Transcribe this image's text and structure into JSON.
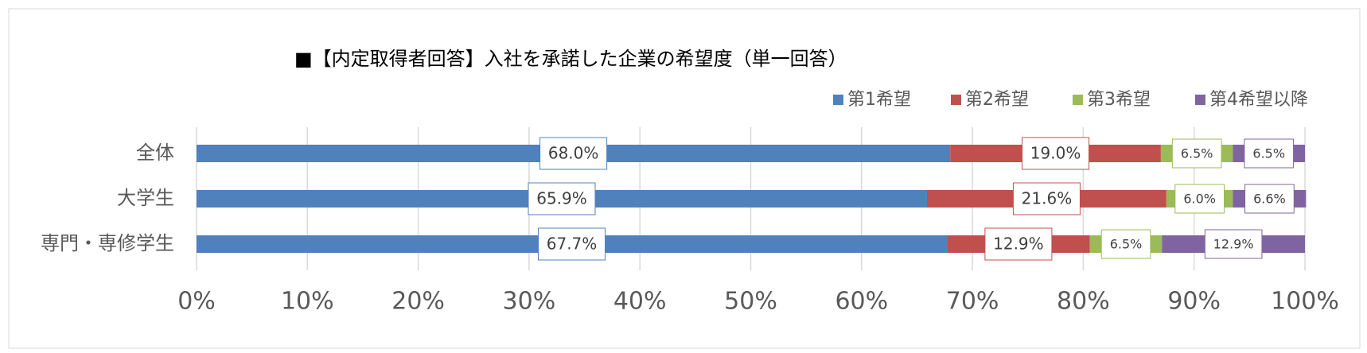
{
  "chart_data": {
    "type": "stacked-bar-horizontal",
    "title": "■【内定取得者回答】入社を承諾した企業の希望度（単一回答）",
    "categories": [
      "全体",
      "大学生",
      "専門・専修学生"
    ],
    "series": [
      {
        "name": "第1希望",
        "color": "#4f81bd",
        "values": [
          68.0,
          65.9,
          67.7
        ],
        "value_labels": [
          "68.0%",
          "65.9%",
          "67.7%"
        ]
      },
      {
        "name": "第2希望",
        "color": "#c0504d",
        "values": [
          19.0,
          21.6,
          12.9
        ],
        "value_labels": [
          "19.0%",
          "21.6%",
          "12.9%"
        ]
      },
      {
        "name": "第3希望",
        "color": "#9bbb59",
        "values": [
          6.5,
          6.0,
          6.5
        ],
        "value_labels": [
          "6.5%",
          "6.0%",
          "6.5%"
        ]
      },
      {
        "name": "第4希望以降",
        "color": "#8064a2",
        "values": [
          6.5,
          6.6,
          12.9
        ],
        "value_labels": [
          "6.5%",
          "6.6%",
          "12.9%"
        ]
      }
    ],
    "xlim": [
      0,
      100
    ],
    "xticks": [
      {
        "value": 0,
        "label": "0%"
      },
      {
        "value": 10,
        "label": "10%"
      },
      {
        "value": 20,
        "label": "20%"
      },
      {
        "value": 30,
        "label": "30%"
      },
      {
        "value": 40,
        "label": "40%"
      },
      {
        "value": 50,
        "label": "50%"
      },
      {
        "value": 60,
        "label": "60%"
      },
      {
        "value": 70,
        "label": "70%"
      },
      {
        "value": 80,
        "label": "80%"
      },
      {
        "value": 90,
        "label": "90%"
      },
      {
        "value": 100,
        "label": "100%"
      }
    ],
    "grid": true,
    "legend": "top-right"
  }
}
